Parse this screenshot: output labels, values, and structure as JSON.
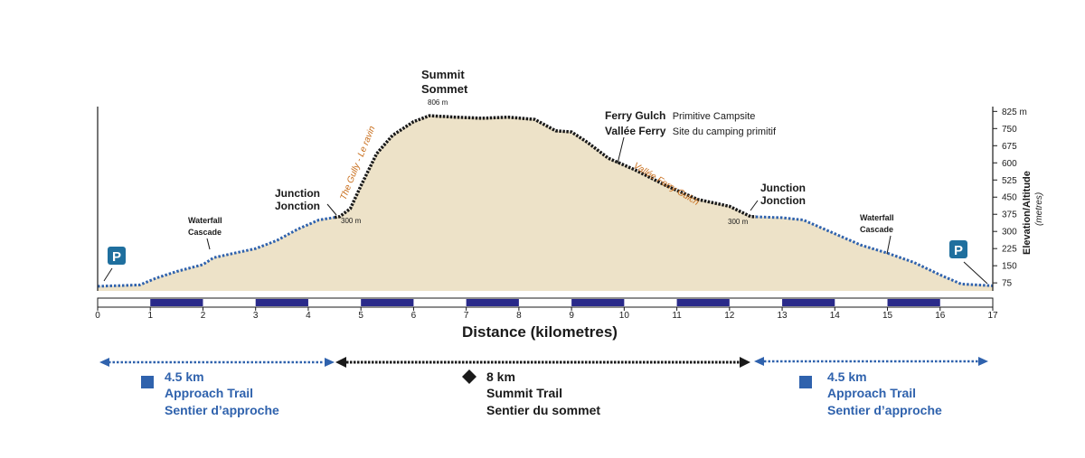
{
  "chart_data": {
    "type": "area",
    "xlabel": "Distance (kilometres)",
    "ylabel": "Elevation/Altitude",
    "ylabel_unit": "(metres)",
    "xlim": [
      0,
      17
    ],
    "ylim": [
      40,
      850
    ],
    "x_ticks": [
      "0",
      "1",
      "2",
      "3",
      "4",
      "5",
      "6",
      "7",
      "8",
      "9",
      "10",
      "11",
      "12",
      "13",
      "14",
      "15",
      "16",
      "17"
    ],
    "y_ticks": [
      75,
      150,
      225,
      300,
      375,
      450,
      525,
      600,
      675,
      750,
      825
    ],
    "y_tick_labels": [
      "75",
      "150",
      "225",
      "300",
      "375",
      "450",
      "525",
      "600",
      "675",
      "750",
      "825 m"
    ],
    "fill_color": "#ede2c8",
    "profile": [
      [
        0.0,
        60
      ],
      [
        0.4,
        63
      ],
      [
        0.8,
        66
      ],
      [
        1.1,
        95
      ],
      [
        1.5,
        125
      ],
      [
        2.0,
        155
      ],
      [
        2.2,
        185
      ],
      [
        2.6,
        205
      ],
      [
        3.0,
        225
      ],
      [
        3.4,
        260
      ],
      [
        3.8,
        310
      ],
      [
        4.2,
        350
      ],
      [
        4.6,
        365
      ],
      [
        4.8,
        400
      ],
      [
        5.0,
        500
      ],
      [
        5.3,
        640
      ],
      [
        5.6,
        720
      ],
      [
        6.0,
        780
      ],
      [
        6.3,
        806
      ],
      [
        6.8,
        800
      ],
      [
        7.3,
        795
      ],
      [
        7.8,
        800
      ],
      [
        8.3,
        790
      ],
      [
        8.7,
        740
      ],
      [
        9.0,
        735
      ],
      [
        9.3,
        690
      ],
      [
        9.7,
        620
      ],
      [
        10.2,
        570
      ],
      [
        10.8,
        500
      ],
      [
        11.4,
        440
      ],
      [
        12.0,
        410
      ],
      [
        12.4,
        365
      ],
      [
        13.0,
        360
      ],
      [
        13.4,
        350
      ],
      [
        14.0,
        290
      ],
      [
        14.5,
        240
      ],
      [
        15.0,
        205
      ],
      [
        15.5,
        165
      ],
      [
        16.0,
        110
      ],
      [
        16.4,
        70
      ],
      [
        17.0,
        62
      ]
    ],
    "segments": [
      {
        "from": 0,
        "to": 4.5,
        "style": "blue-dotted"
      },
      {
        "from": 4.5,
        "to": 12.5,
        "style": "black-dashed"
      },
      {
        "from": 12.5,
        "to": 17,
        "style": "blue-dotted"
      }
    ],
    "distance_bar_blocks": [
      [
        1,
        2
      ],
      [
        3,
        4
      ],
      [
        5,
        6
      ],
      [
        7,
        8
      ],
      [
        9,
        10
      ],
      [
        11,
        12
      ],
      [
        13,
        14
      ],
      [
        15,
        16
      ]
    ],
    "annotations": {
      "summit_line1": "Summit",
      "summit_line2": "Sommet",
      "summit_elev": "806 m",
      "ferry_name": "Ferry Gulch",
      "ferry_desc": "Primitive Campsite",
      "vallee_name": "Vallée Ferry",
      "vallee_desc": "Site du camping primitif",
      "junction_en": "Junction",
      "junction_fr": "Jonction",
      "left_junction_elev": "300 m",
      "right_junction_elev": "300 m",
      "waterfall_en": "Waterfall",
      "waterfall_fr": "Cascade",
      "parking": "P",
      "gully": "The Gully - Le ravin",
      "vallee_gulch": "Vallée Ferry Gulch"
    },
    "legend": {
      "left": {
        "dist": "4.5 km",
        "en": "Approach Trail",
        "fr": "Sentier d’approche"
      },
      "center": {
        "dist": "8 km",
        "en": "Summit Trail",
        "fr": "Sentier du sommet"
      },
      "right": {
        "dist": "4.5 km",
        "en": "Approach Trail",
        "fr": "Sentier d’approche"
      }
    },
    "colors": {
      "approach": "#2f62ad",
      "summit_trail": "#1a1a1a",
      "bar_block": "#2a2a8a",
      "parking": "#1f6f9e",
      "orange": "#c86e1c"
    }
  }
}
